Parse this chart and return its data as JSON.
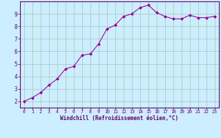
{
  "x": [
    0,
    1,
    2,
    3,
    4,
    5,
    6,
    7,
    8,
    9,
    10,
    11,
    12,
    13,
    14,
    15,
    16,
    17,
    18,
    19,
    20,
    21,
    22,
    23
  ],
  "y": [
    2.0,
    2.3,
    2.7,
    3.3,
    3.8,
    4.6,
    4.8,
    5.7,
    5.8,
    6.6,
    7.8,
    8.1,
    8.8,
    9.0,
    9.5,
    9.7,
    9.1,
    8.8,
    8.6,
    8.6,
    8.9,
    8.7,
    8.7,
    8.8
  ],
  "line_color": "#990099",
  "marker": "D",
  "marker_size": 2,
  "bg_color": "#cceeff",
  "grid_color": "#aaccbb",
  "xlabel": "Windchill (Refroidissement éolien,°C)",
  "xlabel_color": "#660066",
  "tick_color": "#660066",
  "spine_color": "#660066",
  "xlim": [
    -0.5,
    23.5
  ],
  "ylim": [
    1.5,
    10.0
  ],
  "yticks": [
    2,
    3,
    4,
    5,
    6,
    7,
    8,
    9
  ],
  "xticks": [
    0,
    1,
    2,
    3,
    4,
    5,
    6,
    7,
    8,
    9,
    10,
    11,
    12,
    13,
    14,
    15,
    16,
    17,
    18,
    19,
    20,
    21,
    22,
    23
  ],
  "xlabel_fontsize": 5.5,
  "xtick_fontsize": 4.8,
  "ytick_fontsize": 5.5
}
